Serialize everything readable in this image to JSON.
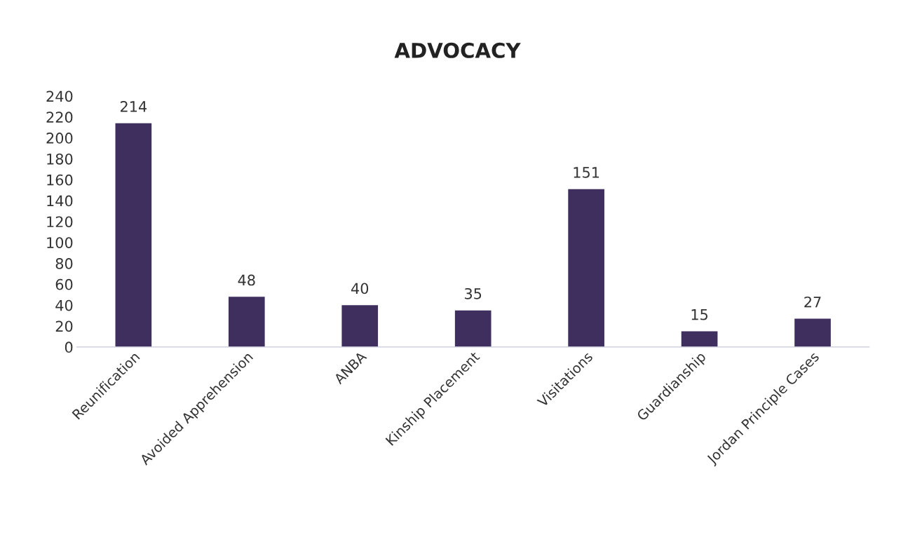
{
  "chart_data": {
    "type": "bar",
    "title": "ADVOCACY",
    "categories": [
      "Reunification",
      "Avoided Apprehension",
      "ANBA",
      "Kinship Placement",
      "Visitations",
      "Guardianship",
      "Jordan Principle Cases"
    ],
    "values": [
      214,
      48,
      40,
      35,
      151,
      15,
      27
    ],
    "color": "#3e2f5e",
    "ylim": [
      0,
      240
    ],
    "yticks": [
      0,
      20,
      40,
      60,
      80,
      100,
      120,
      140,
      160,
      180,
      200,
      220,
      240
    ],
    "grid": false,
    "data_labels": true
  }
}
